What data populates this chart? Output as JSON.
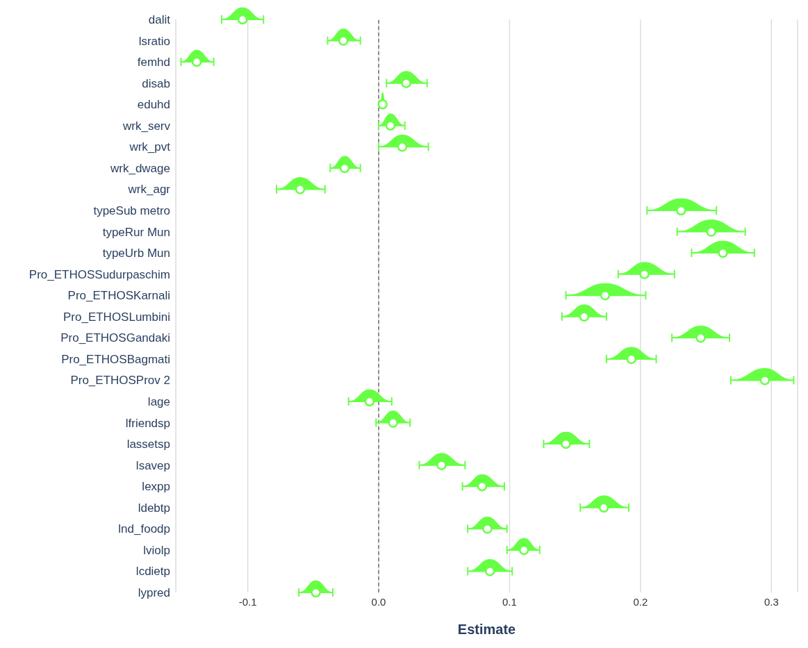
{
  "chart_data": {
    "type": "scatter",
    "orientation": "horizontal",
    "xlabel": "Estimate",
    "categories": [
      "dalit",
      "lsratio",
      "femhd",
      "disab",
      "eduhd",
      "wrk_serv",
      "wrk_pvt",
      "wrk_dwage",
      "wrk_agr",
      "typeSub metro",
      "typeRur Mun",
      "typeUrb Mun",
      "Pro_ETHOSSudurpaschim",
      "Pro_ETHOSKarnali",
      "Pro_ETHOSLumbini",
      "Pro_ETHOSGandaki",
      "Pro_ETHOSBagmati",
      "Pro_ETHOSProv 2",
      "lage",
      "lfriendsp",
      "lassetsp",
      "lsavep",
      "lexpp",
      "ldebtp",
      "lnd_foodp",
      "lviolp",
      "lcdietp",
      "lypred"
    ],
    "values": [
      -0.104,
      -0.027,
      -0.139,
      0.021,
      0.003,
      0.009,
      0.018,
      -0.026,
      -0.06,
      0.231,
      0.254,
      0.263,
      0.203,
      0.173,
      0.157,
      0.246,
      0.193,
      0.295,
      -0.007,
      0.011,
      0.143,
      0.048,
      0.079,
      0.172,
      0.083,
      0.111,
      0.085,
      -0.048
    ],
    "errors": [
      [
        -0.12,
        -0.088
      ],
      [
        -0.039,
        -0.014
      ],
      [
        -0.151,
        -0.126
      ],
      [
        0.006,
        0.037
      ],
      [
        0.001,
        0.005
      ],
      [
        0,
        0.02
      ],
      [
        0,
        0.038
      ],
      [
        -0.037,
        -0.014
      ],
      [
        -0.078,
        -0.041
      ],
      [
        0.205,
        0.258
      ],
      [
        0.228,
        0.28
      ],
      [
        0.239,
        0.287
      ],
      [
        0.183,
        0.226
      ],
      [
        0.143,
        0.204
      ],
      [
        0.14,
        0.174
      ],
      [
        0.224,
        0.268
      ],
      [
        0.174,
        0.212
      ],
      [
        0.269,
        0.317
      ],
      [
        -0.023,
        0.01
      ],
      [
        -0.002,
        0.024
      ],
      [
        0.126,
        0.161
      ],
      [
        0.031,
        0.066
      ],
      [
        0.064,
        0.096
      ],
      [
        0.154,
        0.191
      ],
      [
        0.068,
        0.098
      ],
      [
        0.098,
        0.123
      ],
      [
        0.068,
        0.102
      ],
      [
        -0.061,
        -0.035
      ]
    ],
    "color": "#66ff44",
    "marker": "circle",
    "grid": "x",
    "xlim": [
      -0.155,
      0.32
    ],
    "xticks": [
      -0.1,
      {
        "value": 0,
        "label": "0.0"
      },
      0.1,
      0.2,
      0.3
    ],
    "ref_lines": [
      {
        "axis": "x",
        "value": 0,
        "color": "#333333",
        "line_style": "dashed"
      }
    ]
  }
}
